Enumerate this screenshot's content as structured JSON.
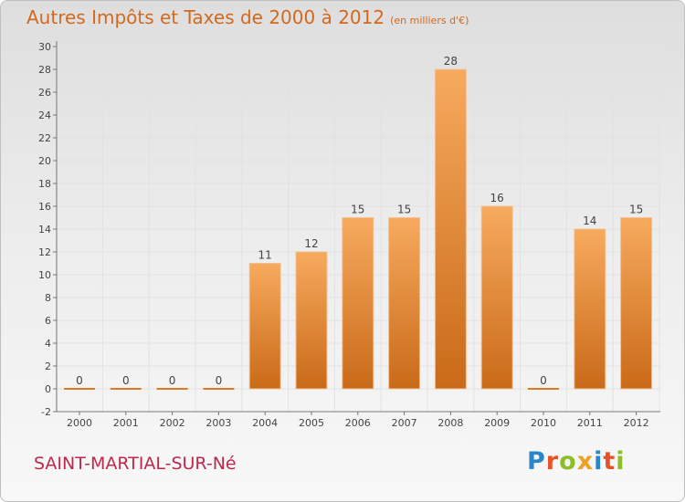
{
  "title": "Autres Impôts et Taxes de 2000 à 2012",
  "unit": "(en milliers d'€)",
  "commune": "SAINT-MARTIAL-SUR-Né",
  "logo": "Proxiti",
  "colors": {
    "bar_light": "#f6a75a",
    "bar_dark": "#cc6d1c",
    "title": "#d2691e",
    "commune": "#c0284b"
  },
  "chart_data": {
    "type": "bar",
    "categories": [
      "2000",
      "2001",
      "2002",
      "2003",
      "2004",
      "2005",
      "2006",
      "2007",
      "2008",
      "2009",
      "2010",
      "2011",
      "2012"
    ],
    "values": [
      0,
      0,
      0,
      0,
      11,
      12,
      15,
      15,
      28,
      16,
      0,
      14,
      15
    ],
    "ylim": [
      -2,
      30
    ],
    "yticks": [
      -2,
      0,
      2,
      4,
      6,
      8,
      10,
      12,
      14,
      16,
      18,
      20,
      22,
      24,
      26,
      28,
      30
    ],
    "grid": true
  }
}
